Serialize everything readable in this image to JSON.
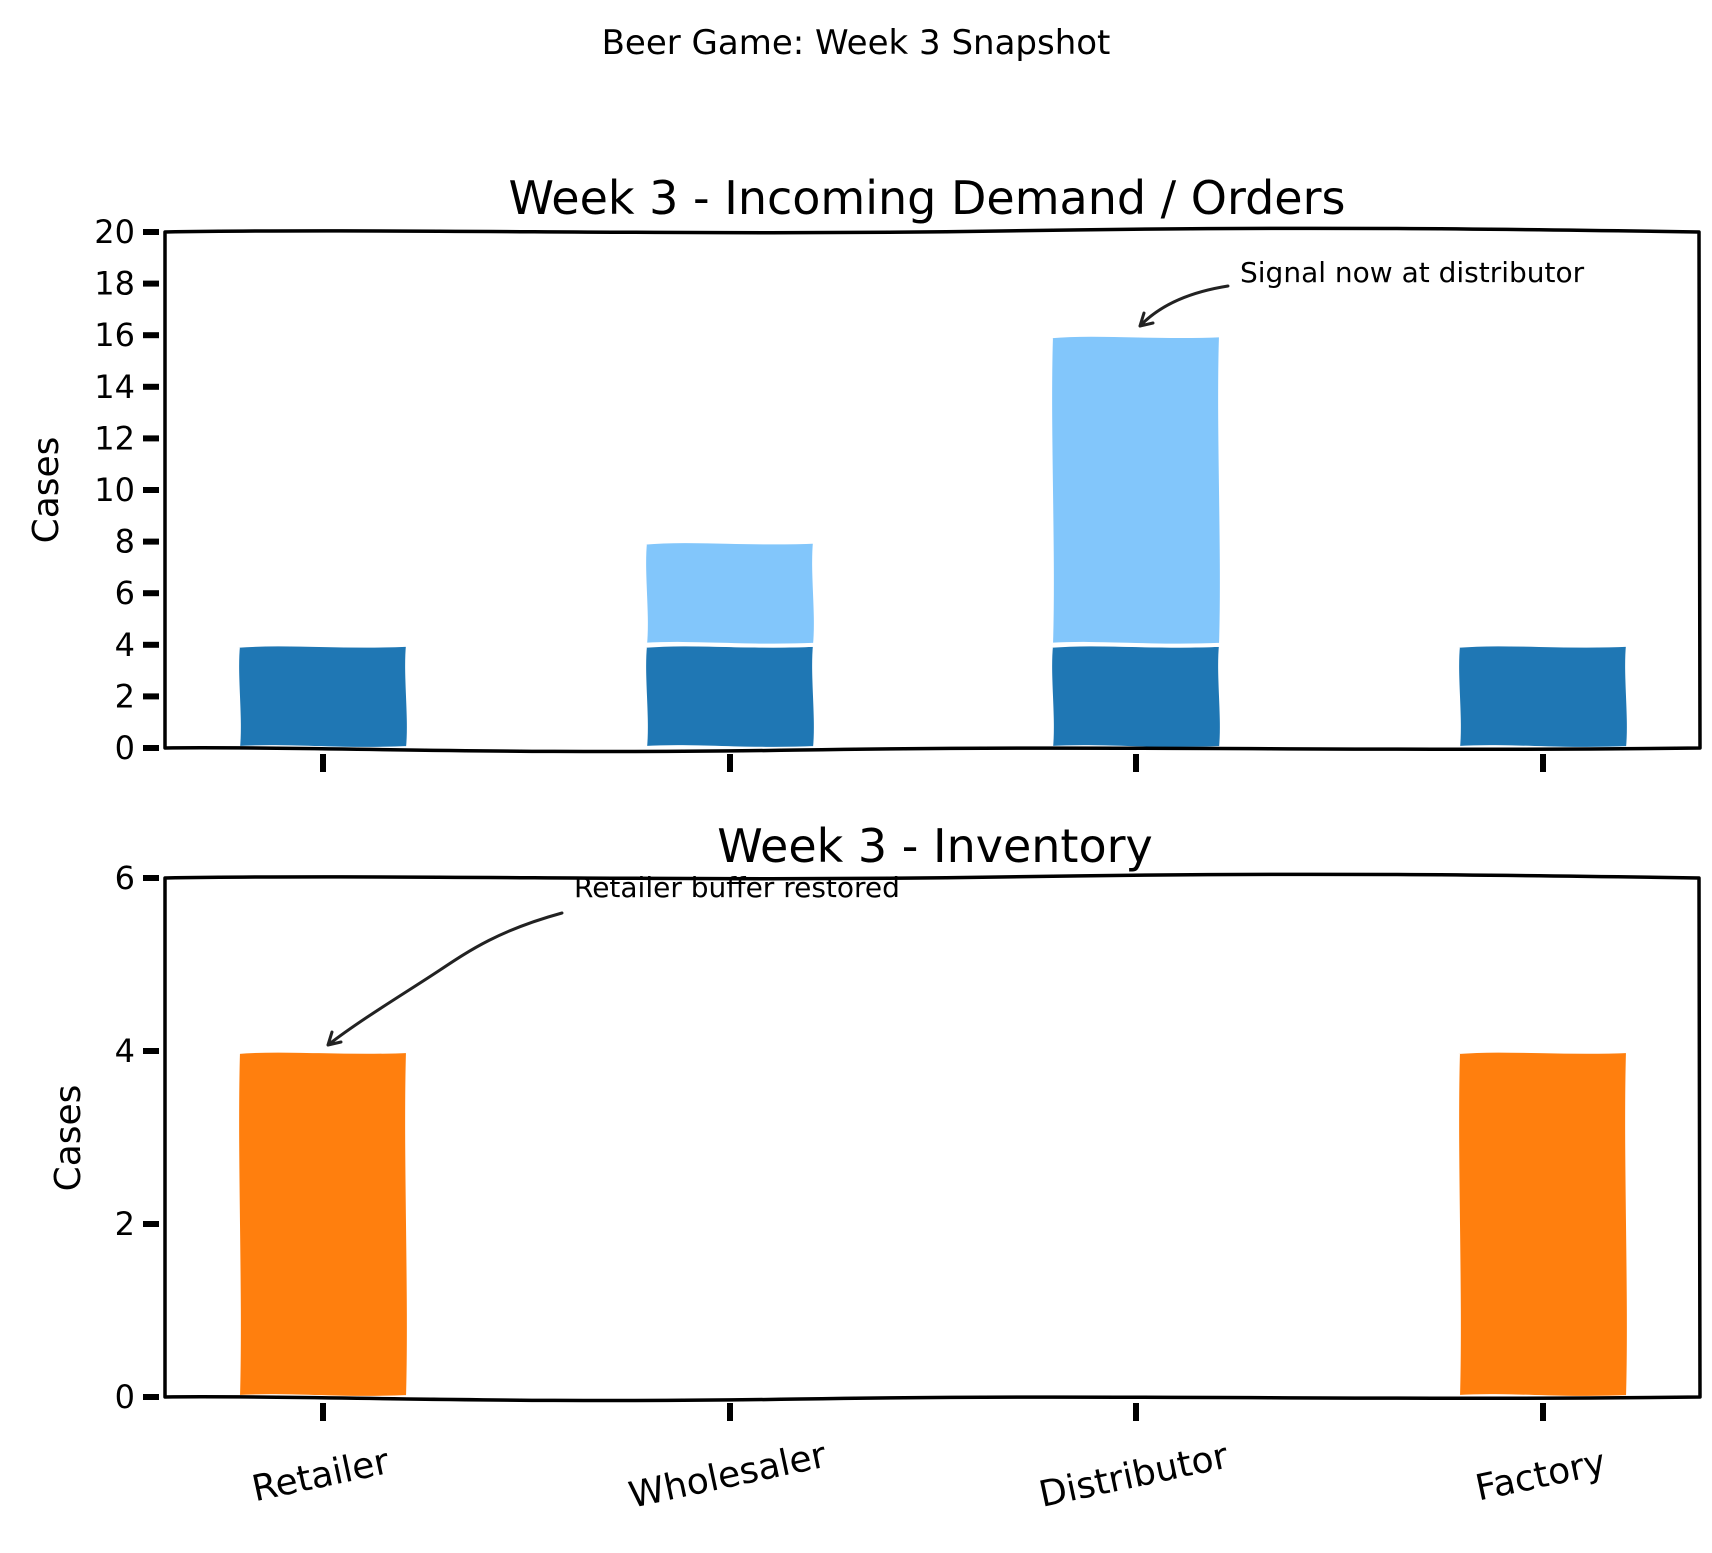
{
  "figure": {
    "suptitle": "Beer Game: Week 3 Snapshot"
  },
  "chart_data": [
    {
      "type": "bar",
      "stacked": true,
      "title": "Week 3 - Incoming Demand / Orders",
      "ylabel": "Cases",
      "xlabel": "",
      "ylim": [
        0,
        20
      ],
      "yticks": [
        0,
        2,
        4,
        6,
        8,
        10,
        12,
        14,
        16,
        18,
        20
      ],
      "categories": [
        "Retailer",
        "Wholesaler",
        "Distributor",
        "Factory"
      ],
      "show_category_labels": false,
      "series": [
        {
          "values": [
            4,
            4,
            4,
            4
          ],
          "color": "#1f77b4"
        },
        {
          "values": [
            0,
            4,
            12,
            0
          ],
          "color": "#82c6fb"
        }
      ],
      "annotation": {
        "text": "Signal now at distributor",
        "category": "Distributor",
        "value": 16
      }
    },
    {
      "type": "bar",
      "title": "Week 3 - Inventory",
      "ylabel": "Cases",
      "xlabel": "",
      "ylim": [
        0,
        6
      ],
      "yticks": [
        0,
        2,
        4,
        6
      ],
      "categories": [
        "Retailer",
        "Wholesaler",
        "Distributor",
        "Factory"
      ],
      "show_category_labels": true,
      "series": [
        {
          "values": [
            4,
            0,
            0,
            4
          ],
          "color": "#ff7f0e"
        }
      ],
      "annotation": {
        "text": "Retailer buffer restored",
        "category": "Retailer",
        "value": 4
      }
    }
  ]
}
